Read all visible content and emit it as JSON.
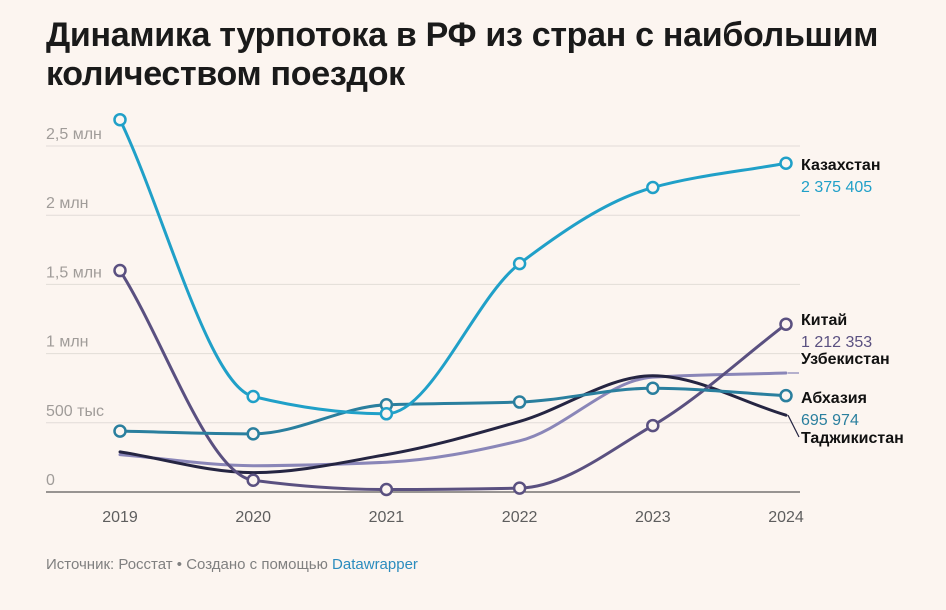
{
  "title": "Динамика турпотока в РФ из стран с наибольшим количеством поездок",
  "footer": {
    "source_label": "Источник: Росстат • Создано с помощью",
    "tool_name": "Datawrapper"
  },
  "chart_data": {
    "type": "line",
    "title": "Динамика турпотока в РФ из стран с наибольшим количеством поездок",
    "x": [
      "2019",
      "2020",
      "2021",
      "2022",
      "2023",
      "2024"
    ],
    "ylim": [
      0,
      2600000
    ],
    "yticks": [
      {
        "value": 0,
        "label": "0"
      },
      {
        "value": 500000,
        "label": "500 тыс"
      },
      {
        "value": 1000000,
        "label": "1 млн"
      },
      {
        "value": 1500000,
        "label": "1,5 млн"
      },
      {
        "value": 2000000,
        "label": "2 млн"
      },
      {
        "value": 2500000,
        "label": "2,5 млн"
      }
    ],
    "grid": true,
    "legend": "direct labels at line ends",
    "series": [
      {
        "name": "Казахстан",
        "color": "#20a0c8",
        "markers": true,
        "value_label": "2 375 405",
        "values": [
          2690000,
          690000,
          565000,
          1650000,
          2200000,
          2375405
        ]
      },
      {
        "name": "Китай",
        "color": "#5a5080",
        "markers": true,
        "value_label": "1 212 353",
        "values": [
          1600000,
          85000,
          18000,
          28000,
          480000,
          1212353
        ]
      },
      {
        "name": "Узбекистан",
        "color": "#8a86b8",
        "markers": false,
        "value_label": "",
        "values": [
          270000,
          190000,
          215000,
          370000,
          830000,
          860000
        ]
      },
      {
        "name": "Абхазия",
        "color": "#2a7f9e",
        "markers": true,
        "value_label": "695 974",
        "values": [
          440000,
          420000,
          630000,
          650000,
          750000,
          695974
        ]
      },
      {
        "name": "Таджикистан",
        "color": "#252542",
        "markers": false,
        "value_label": "",
        "values": [
          290000,
          140000,
          270000,
          510000,
          840000,
          555000
        ]
      }
    ]
  }
}
